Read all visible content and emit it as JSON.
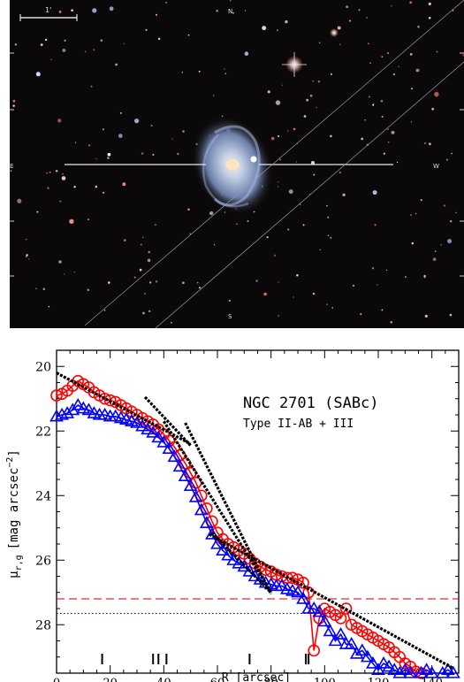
{
  "image_panel": {
    "scale_bar_label": "1'",
    "compass_north": "N",
    "compass_east": "E",
    "compass_west": "W",
    "compass_south": "S",
    "background_color": "#0b0809",
    "galaxy_color": "#c8d4ea"
  },
  "chart_data": {
    "type": "scatter",
    "title": "NGC 2701 (SABc)",
    "subtitle": "Type II-AB + III",
    "xlabel": "R [arcsec]",
    "ylabel": "μ_r,g [mag arcsec^-2]",
    "ylabel_main": "μ",
    "ylabel_sub": "r,g",
    "ylabel_unit": "[mag arcsec",
    "ylabel_exp": "−2",
    "ylabel_close": "]",
    "xlim": [
      0,
      150
    ],
    "ylim": [
      29.5,
      19.5
    ],
    "y_inverted": true,
    "xticks": [
      "0",
      "20",
      "40",
      "60",
      "80",
      "100",
      "120",
      "140"
    ],
    "yticks": [
      "20",
      "22",
      "24",
      "26",
      "28"
    ],
    "series": [
      {
        "marker": "circle",
        "color": "#ff0000",
        "x": [
          0,
          2,
          4,
          6,
          8,
          10,
          12,
          14,
          16,
          18,
          20,
          22,
          24,
          26,
          28,
          30,
          32,
          34,
          36,
          38,
          40,
          42,
          44,
          46,
          48,
          50,
          52,
          54,
          56,
          58,
          60,
          62,
          64,
          66,
          68,
          70,
          72,
          74,
          76,
          78,
          80,
          82,
          84,
          86,
          88,
          90,
          92,
          94,
          96,
          98,
          100,
          102,
          104,
          106,
          108,
          110,
          112,
          114,
          116,
          118,
          120,
          122,
          124,
          126,
          128,
          130,
          132,
          134,
          136,
          138,
          140,
          142,
          144,
          146,
          148
        ],
        "y": [
          20.9,
          20.85,
          20.75,
          20.6,
          20.45,
          20.55,
          20.65,
          20.8,
          20.9,
          21.0,
          21.05,
          21.1,
          21.2,
          21.3,
          21.4,
          21.5,
          21.6,
          21.7,
          21.8,
          21.95,
          22.1,
          22.3,
          22.5,
          22.75,
          23.0,
          23.3,
          23.6,
          24.0,
          24.4,
          24.8,
          25.15,
          25.35,
          25.5,
          25.6,
          25.7,
          25.8,
          25.95,
          26.1,
          26.2,
          26.3,
          26.35,
          26.45,
          26.5,
          26.55,
          26.55,
          26.6,
          26.7,
          27.0,
          28.8,
          27.8,
          27.5,
          27.6,
          27.7,
          27.8,
          27.5,
          28.0,
          28.1,
          28.2,
          28.3,
          28.4,
          28.5,
          28.6,
          28.7,
          28.85,
          29.0,
          29.2,
          29.3,
          29.45,
          29.5,
          29.55,
          29.6,
          29.6,
          29.6,
          29.6,
          29.6
        ]
      },
      {
        "marker": "triangle",
        "color": "#0000ff",
        "x": [
          0,
          2,
          4,
          6,
          8,
          10,
          12,
          14,
          16,
          18,
          20,
          22,
          24,
          26,
          28,
          30,
          32,
          34,
          36,
          38,
          40,
          42,
          44,
          46,
          48,
          50,
          52,
          54,
          56,
          58,
          60,
          62,
          64,
          66,
          68,
          70,
          72,
          74,
          76,
          78,
          80,
          82,
          84,
          86,
          88,
          90,
          92,
          94,
          96,
          98,
          100,
          102,
          104,
          106,
          108,
          110,
          112,
          114,
          116,
          118,
          120,
          122,
          124,
          126,
          128,
          130,
          132,
          134,
          136,
          138,
          140,
          142,
          144,
          146,
          148
        ],
        "y": [
          21.55,
          21.5,
          21.45,
          21.35,
          21.2,
          21.3,
          21.35,
          21.45,
          21.5,
          21.5,
          21.55,
          21.55,
          21.6,
          21.65,
          21.7,
          21.75,
          21.85,
          21.95,
          22.05,
          22.2,
          22.35,
          22.55,
          22.8,
          23.1,
          23.4,
          23.7,
          24.05,
          24.45,
          24.85,
          25.2,
          25.5,
          25.7,
          25.85,
          26.0,
          26.1,
          26.2,
          26.35,
          26.5,
          26.6,
          26.7,
          26.75,
          26.8,
          26.8,
          26.9,
          26.95,
          27.0,
          27.2,
          27.5,
          27.5,
          27.6,
          27.9,
          28.2,
          28.5,
          28.3,
          28.6,
          28.6,
          28.9,
          28.8,
          29.0,
          29.2,
          29.4,
          29.2,
          29.3,
          29.4,
          29.5,
          29.4,
          29.5,
          29.6,
          29.5,
          29.4,
          29.5,
          29.6,
          29.5,
          29.4,
          29.5
        ]
      }
    ],
    "fits": [
      {
        "x": [
          0,
          50
        ],
        "y": [
          20.2,
          22.4
        ]
      },
      {
        "x": [
          33,
          50
        ],
        "y": [
          20.95,
          22.45
        ]
      },
      {
        "x": [
          40,
          80
        ],
        "y": [
          21.7,
          27.0
        ]
      },
      {
        "x": [
          48,
          80
        ],
        "y": [
          21.75,
          27.05
        ]
      },
      {
        "x": [
          57,
          148
        ],
        "y": [
          25.2,
          29.35
        ]
      },
      {
        "x": [
          58,
          80
        ],
        "y": [
          25.15,
          27.0
        ]
      }
    ],
    "hlines": [
      {
        "y": 27.2,
        "color": "#cc0000",
        "style": "dashed"
      },
      {
        "y": 27.65,
        "color": "#0000cc",
        "style": "dotted"
      }
    ],
    "bottom_markers": [
      17,
      36,
      38,
      41,
      72,
      93,
      94
    ],
    "grid": false,
    "legend": "none"
  }
}
